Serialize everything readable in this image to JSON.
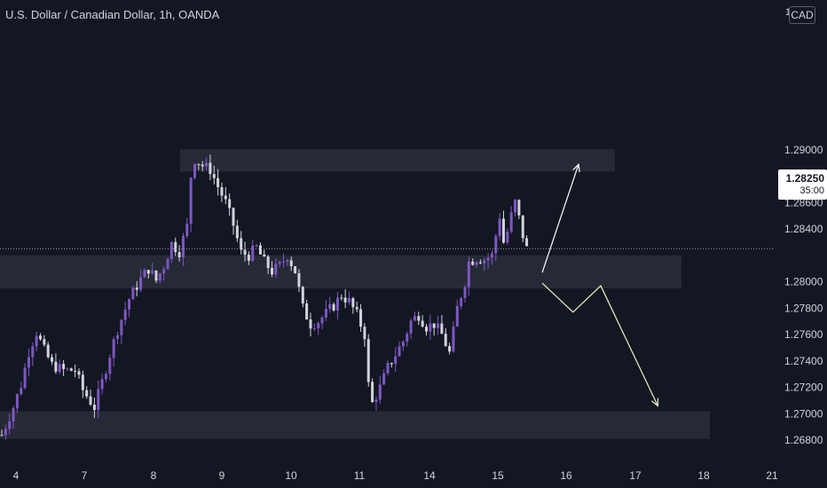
{
  "header": {
    "title": "U.S. Dollar / Canadian Dollar, 1h, OANDA",
    "currency_button": "CAD",
    "currency_glyph": "1"
  },
  "current_price": {
    "value": "1.28250",
    "countdown": "35:00"
  },
  "colors": {
    "background": "#131722",
    "bull_candle": "#7e57c2",
    "bear_candle": "#d1d4dc",
    "zone": "#2a2e39",
    "arrow_up": "#ffffff",
    "arrow_down": "#f3f0c6",
    "axis_text": "#d1d4dc"
  },
  "chart_data": {
    "type": "candlestick",
    "title": "U.S. Dollar / Canadian Dollar, 1h, OANDA",
    "ylim": [
      1.2664,
      1.3004
    ],
    "y_ticks": [
      "1.29000",
      "1.28800",
      "1.28600",
      "1.28400",
      "1.28250",
      "1.28000",
      "1.27800",
      "1.27600",
      "1.27400",
      "1.27200",
      "1.27000",
      "1.26800"
    ],
    "x_ticks": [
      "4",
      "7",
      "8",
      "9",
      "10",
      "11",
      "14",
      "15",
      "16",
      "17",
      "18",
      "21"
    ],
    "price_path": [
      [
        0,
        1.2684
      ],
      [
        3,
        1.2705
      ],
      [
        5,
        1.2722
      ],
      [
        7,
        1.2747
      ],
      [
        9,
        1.2762
      ],
      [
        11,
        1.2748
      ],
      [
        13,
        1.2737
      ],
      [
        16,
        1.2733
      ],
      [
        19,
        1.2733
      ],
      [
        21,
        1.2718
      ],
      [
        24,
        1.2705
      ],
      [
        26,
        1.2724
      ],
      [
        28,
        1.2745
      ],
      [
        30,
        1.2764
      ],
      [
        33,
        1.2787
      ],
      [
        36,
        1.2802
      ],
      [
        38,
        1.281
      ],
      [
        40,
        1.2801
      ],
      [
        42,
        1.2812
      ],
      [
        44,
        1.2829
      ],
      [
        46,
        1.2823
      ],
      [
        48,
        1.2842
      ],
      [
        49,
        1.288
      ],
      [
        50,
        1.2893
      ],
      [
        52,
        1.2888
      ],
      [
        54,
        1.2885
      ],
      [
        56,
        1.2872
      ],
      [
        58,
        1.286
      ],
      [
        60,
        1.2843
      ],
      [
        62,
        1.2822
      ],
      [
        64,
        1.282
      ],
      [
        66,
        1.2826
      ],
      [
        68,
        1.2815
      ],
      [
        70,
        1.2808
      ],
      [
        72,
        1.2812
      ],
      [
        74,
        1.282
      ],
      [
        76,
        1.2808
      ],
      [
        78,
        1.278
      ],
      [
        80,
        1.2768
      ],
      [
        82,
        1.277
      ],
      [
        84,
        1.2776
      ],
      [
        86,
        1.2782
      ],
      [
        88,
        1.279
      ],
      [
        90,
        1.2785
      ],
      [
        92,
        1.2775
      ],
      [
        94,
        1.276
      ],
      [
        95,
        1.2722
      ],
      [
        96,
        1.2708
      ],
      [
        98,
        1.272
      ],
      [
        100,
        1.2735
      ],
      [
        102,
        1.2745
      ],
      [
        104,
        1.2755
      ],
      [
        106,
        1.277
      ],
      [
        108,
        1.2775
      ],
      [
        110,
        1.2766
      ],
      [
        112,
        1.2768
      ],
      [
        114,
        1.276
      ],
      [
        116,
        1.2746
      ],
      [
        117,
        1.2762
      ],
      [
        118,
        1.278
      ],
      [
        120,
        1.28
      ],
      [
        121,
        1.2815
      ],
      [
        123,
        1.2818
      ],
      [
        125,
        1.2817
      ],
      [
        127,
        1.282
      ],
      [
        128,
        1.2835
      ],
      [
        129,
        1.285
      ],
      [
        130,
        1.283
      ],
      [
        131,
        1.2838
      ],
      [
        132,
        1.285
      ],
      [
        133,
        1.286
      ],
      [
        134,
        1.2848
      ],
      [
        135,
        1.2835
      ],
      [
        136,
        1.2825
      ]
    ],
    "zones": [
      {
        "low": 1.28835,
        "high": 1.29005
      },
      {
        "low": 1.2795,
        "high": 1.282
      },
      {
        "low": 1.2681,
        "high": 1.2702
      }
    ],
    "arrows": [
      {
        "dir": "up",
        "points": [
          [
            15.65,
            1.2807
          ],
          [
            16.18,
            1.2889
          ]
        ]
      },
      {
        "dir": "down",
        "points": [
          [
            15.65,
            1.2799
          ],
          [
            16.1,
            1.2777
          ],
          [
            16.5,
            1.2797
          ],
          [
            17.33,
            1.2706
          ]
        ]
      }
    ],
    "grid": false
  }
}
